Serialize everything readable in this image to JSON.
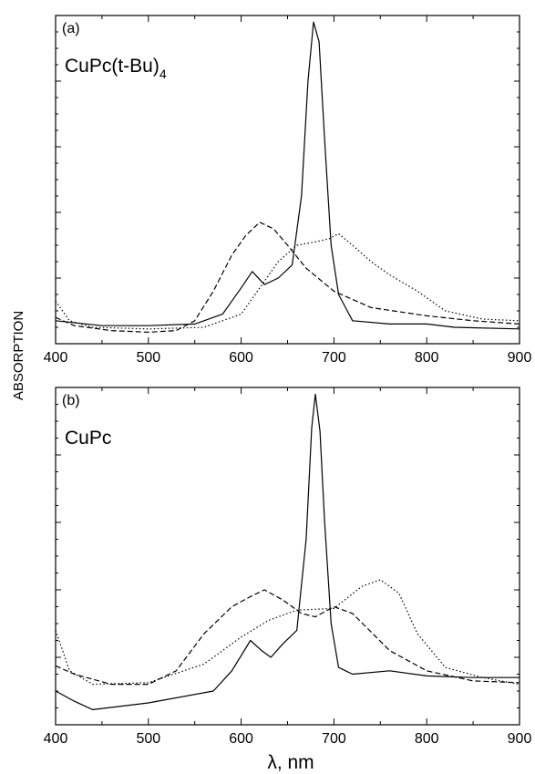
{
  "figure": {
    "ylabel": "ABSORPTION",
    "xlabel": "λ, nm"
  },
  "chart_data": [
    {
      "type": "line",
      "panel_label": "(a)",
      "compound_label": "CuPc(t-Bu)",
      "compound_subscript": "4",
      "xlim": [
        400,
        900
      ],
      "ylim": [
        0,
        1
      ],
      "x_ticks": [
        400,
        500,
        600,
        700,
        800,
        900
      ],
      "y_tick_labels": false,
      "grid": false,
      "series": [
        {
          "style": "solid",
          "points": [
            [
              400,
              0.07
            ],
            [
              450,
              0.055
            ],
            [
              500,
              0.055
            ],
            [
              550,
              0.06
            ],
            [
              580,
              0.09
            ],
            [
              600,
              0.17
            ],
            [
              612,
              0.22
            ],
            [
              625,
              0.18
            ],
            [
              640,
              0.2
            ],
            [
              655,
              0.24
            ],
            [
              665,
              0.45
            ],
            [
              672,
              0.8
            ],
            [
              678,
              0.98
            ],
            [
              684,
              0.92
            ],
            [
              690,
              0.62
            ],
            [
              697,
              0.3
            ],
            [
              705,
              0.15
            ],
            [
              720,
              0.07
            ],
            [
              760,
              0.06
            ],
            [
              800,
              0.06
            ],
            [
              830,
              0.05
            ],
            [
              900,
              0.045
            ]
          ]
        },
        {
          "style": "dashed",
          "points": [
            [
              400,
              0.08
            ],
            [
              420,
              0.055
            ],
            [
              460,
              0.04
            ],
            [
              500,
              0.035
            ],
            [
              530,
              0.04
            ],
            [
              550,
              0.07
            ],
            [
              570,
              0.16
            ],
            [
              590,
              0.27
            ],
            [
              605,
              0.33
            ],
            [
              620,
              0.37
            ],
            [
              635,
              0.35
            ],
            [
              650,
              0.3
            ],
            [
              670,
              0.23
            ],
            [
              700,
              0.16
            ],
            [
              740,
              0.11
            ],
            [
              800,
              0.085
            ],
            [
              850,
              0.07
            ],
            [
              900,
              0.06
            ]
          ]
        },
        {
          "style": "dotted",
          "points": [
            [
              400,
              0.13
            ],
            [
              415,
              0.07
            ],
            [
              440,
              0.05
            ],
            [
              500,
              0.045
            ],
            [
              560,
              0.05
            ],
            [
              600,
              0.09
            ],
            [
              620,
              0.17
            ],
            [
              640,
              0.25
            ],
            [
              660,
              0.3
            ],
            [
              680,
              0.31
            ],
            [
              695,
              0.32
            ],
            [
              705,
              0.335
            ],
            [
              720,
              0.3
            ],
            [
              740,
              0.25
            ],
            [
              760,
              0.21
            ],
            [
              790,
              0.16
            ],
            [
              820,
              0.1
            ],
            [
              860,
              0.075
            ],
            [
              900,
              0.07
            ]
          ]
        }
      ]
    },
    {
      "type": "line",
      "panel_label": "(b)",
      "compound_label": "CuPc",
      "xlim": [
        400,
        900
      ],
      "ylim": [
        0,
        1
      ],
      "x_ticks": [
        400,
        500,
        600,
        700,
        800,
        900
      ],
      "y_tick_labels": false,
      "grid": false,
      "series": [
        {
          "style": "solid",
          "points": [
            [
              400,
              0.1
            ],
            [
              420,
              0.07
            ],
            [
              440,
              0.045
            ],
            [
              500,
              0.065
            ],
            [
              570,
              0.1
            ],
            [
              590,
              0.16
            ],
            [
              610,
              0.25
            ],
            [
              622,
              0.22
            ],
            [
              632,
              0.2
            ],
            [
              645,
              0.24
            ],
            [
              660,
              0.28
            ],
            [
              670,
              0.55
            ],
            [
              676,
              0.88
            ],
            [
              680,
              0.98
            ],
            [
              685,
              0.87
            ],
            [
              690,
              0.6
            ],
            [
              697,
              0.3
            ],
            [
              705,
              0.17
            ],
            [
              720,
              0.15
            ],
            [
              760,
              0.16
            ],
            [
              800,
              0.145
            ],
            [
              850,
              0.14
            ],
            [
              900,
              0.14
            ]
          ]
        },
        {
          "style": "dashed",
          "points": [
            [
              400,
              0.175
            ],
            [
              420,
              0.15
            ],
            [
              460,
              0.12
            ],
            [
              500,
              0.12
            ],
            [
              530,
              0.16
            ],
            [
              560,
              0.27
            ],
            [
              590,
              0.35
            ],
            [
              610,
              0.38
            ],
            [
              625,
              0.4
            ],
            [
              645,
              0.37
            ],
            [
              665,
              0.33
            ],
            [
              680,
              0.32
            ],
            [
              700,
              0.35
            ],
            [
              720,
              0.33
            ],
            [
              760,
              0.22
            ],
            [
              800,
              0.16
            ],
            [
              850,
              0.13
            ],
            [
              900,
              0.125
            ]
          ]
        },
        {
          "style": "dotted",
          "points": [
            [
              400,
              0.28
            ],
            [
              415,
              0.16
            ],
            [
              440,
              0.12
            ],
            [
              500,
              0.125
            ],
            [
              560,
              0.18
            ],
            [
              600,
              0.26
            ],
            [
              630,
              0.31
            ],
            [
              660,
              0.34
            ],
            [
              700,
              0.345
            ],
            [
              730,
              0.41
            ],
            [
              750,
              0.43
            ],
            [
              770,
              0.39
            ],
            [
              790,
              0.27
            ],
            [
              820,
              0.17
            ],
            [
              860,
              0.14
            ],
            [
              900,
              0.12
            ]
          ]
        }
      ]
    }
  ]
}
